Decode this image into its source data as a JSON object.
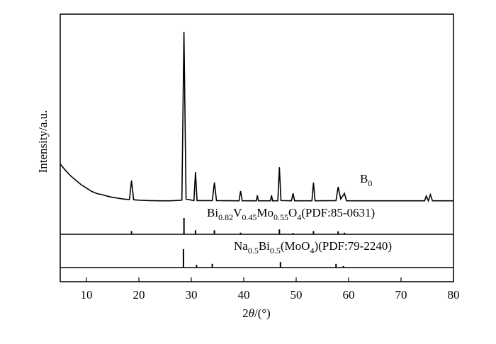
{
  "chart_data": {
    "type": "line",
    "xlabel": [
      {
        "text": "2"
      },
      {
        "text": "θ",
        "italic": true
      },
      {
        "text": "/(°)"
      }
    ],
    "ylabel": "Intensity/a.u.",
    "xlim": [
      5,
      80
    ],
    "xticks": [
      10,
      20,
      30,
      40,
      50,
      60,
      70,
      80
    ],
    "ylim": [
      0,
      100
    ],
    "color": "#000000",
    "series": [
      {
        "label": [
          {
            "text": "B"
          },
          {
            "text": "0",
            "sub": true
          }
        ],
        "x": [
          5,
          6,
          7,
          8,
          9,
          10,
          11,
          12,
          13,
          14,
          15,
          16,
          17,
          18.2,
          18.6,
          19.0,
          20,
          22,
          24,
          26,
          28.2,
          28.6,
          29.0,
          30.5,
          30.8,
          31.1,
          34.0,
          34.4,
          34.8,
          39.1,
          39.4,
          39.7,
          42.4,
          42.6,
          42.8,
          45.1,
          45.3,
          45.5,
          46.5,
          46.8,
          47.1,
          49.1,
          49.4,
          49.7,
          53.0,
          53.3,
          53.6,
          57.6,
          58.0,
          58.5,
          59.2,
          59.6,
          74.5,
          74.8,
          75.2,
          75.6,
          76.0,
          80
        ],
        "values": [
          32,
          29,
          26.5,
          24.5,
          22.5,
          21,
          19.5,
          18.5,
          18,
          17.3,
          16.8,
          16.4,
          16,
          15.8,
          24.4,
          15.7,
          15.5,
          15.3,
          15.2,
          15.2,
          15.5,
          92,
          16,
          15.3,
          28.3,
          15.3,
          15.3,
          23.5,
          15.3,
          15.2,
          19.6,
          15.2,
          15.2,
          17.7,
          15.2,
          15.2,
          17.7,
          15.2,
          15.2,
          30.5,
          15.3,
          15.2,
          18.6,
          15.2,
          15.2,
          23.5,
          15.2,
          15.3,
          21.5,
          16,
          18.6,
          15.2,
          15.2,
          17.4,
          15.2,
          18,
          15.2,
          15.2
        ]
      }
    ],
    "references": [
      {
        "label": [
          {
            "text": "Bi"
          },
          {
            "text": "0.82",
            "sub": true
          },
          {
            "text": "V"
          },
          {
            "text": "0.45",
            "sub": true
          },
          {
            "text": "Mo"
          },
          {
            "text": "0.55",
            "sub": true
          },
          {
            "text": "O"
          },
          {
            "text": "4",
            "sub": true
          },
          {
            "text": "(PDF:85-0631)"
          }
        ],
        "x": [
          18.6,
          28.6,
          30.8,
          34.4,
          39.4,
          46.8,
          49.4,
          53.3,
          58.0,
          59.2
        ],
        "values": [
          20,
          100,
          25,
          25,
          10,
          30,
          8,
          20,
          18,
          10
        ]
      },
      {
        "label": [
          {
            "text": "Na"
          },
          {
            "text": "0.5",
            "sub": true
          },
          {
            "text": "Bi"
          },
          {
            "text": "0.5",
            "sub": true
          },
          {
            "text": "(MoO"
          },
          {
            "text": "4",
            "sub": true
          },
          {
            "text": ")(PDF:79-2240)"
          }
        ],
        "x": [
          28.5,
          31.0,
          34.0,
          47.0,
          57.6,
          59.0
        ],
        "values": [
          100,
          15,
          20,
          30,
          20,
          8
        ]
      }
    ]
  }
}
